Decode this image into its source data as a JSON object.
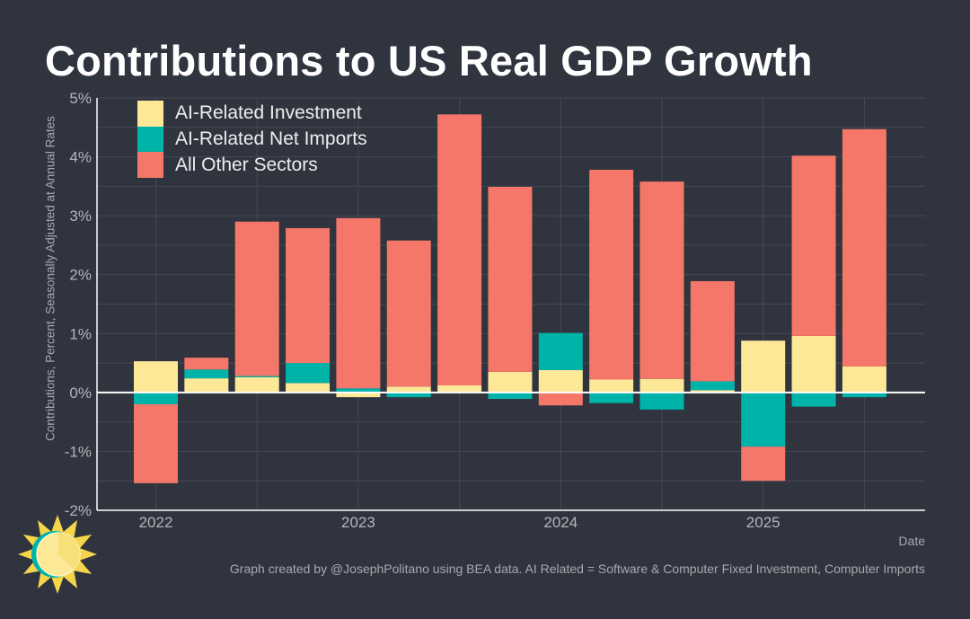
{
  "header": {
    "title": "Contributions to US Real GDP Growth"
  },
  "footer": {
    "x_axis_title": "Date",
    "caption": "Graph created by @JosephPolitano using BEA data. AI Related = Software & Computer Fixed Investment, Computer Imports"
  },
  "logo": {
    "icon": "sun-icon"
  },
  "colors": {
    "background": "#30343f",
    "grid": "#454954",
    "axis": "#ffffff",
    "ai_investment": "#fde898",
    "ai_imports": "#00b3a9",
    "other": "#f4776a"
  },
  "chart_data": {
    "type": "bar",
    "stacked": true,
    "title": "Contributions to US Real GDP Growth",
    "xlabel": "Date",
    "ylabel": "Contributions, Percent, Seasonally Adjusted at Annual Rates",
    "ylim": [
      -2,
      5
    ],
    "yticks": [
      -2,
      -1,
      0,
      1,
      2,
      3,
      4,
      5
    ],
    "ytick_labels": [
      "-2%",
      "-1%",
      "0%",
      "1%",
      "2%",
      "3%",
      "4%",
      "5%"
    ],
    "xtick_labels": [
      "2022",
      "2023",
      "2024",
      "2025"
    ],
    "grid": true,
    "legend_position": "top-left",
    "categories": [
      "2022 Q1",
      "2022 Q2",
      "2022 Q3",
      "2022 Q4",
      "2023 Q1",
      "2023 Q2",
      "2023 Q3",
      "2023 Q4",
      "2024 Q1",
      "2024 Q2",
      "2024 Q3",
      "2024 Q4",
      "2025 Q1",
      "2025 Q2",
      "2025 Q3"
    ],
    "series": [
      {
        "name": "AI-Related Investment",
        "color": "#fde898",
        "values": [
          0.53,
          0.24,
          0.26,
          0.16,
          -0.08,
          0.1,
          0.12,
          0.35,
          0.38,
          0.22,
          0.23,
          0.04,
          0.88,
          0.96,
          0.44
        ]
      },
      {
        "name": "AI-Related Net Imports",
        "color": "#00b3a9",
        "values": [
          -0.2,
          0.15,
          0.02,
          0.34,
          0.07,
          -0.08,
          0.0,
          -0.11,
          0.63,
          -0.18,
          -0.29,
          0.15,
          -0.92,
          -0.24,
          -0.08
        ]
      },
      {
        "name": "All Other Sectors",
        "color": "#f4776a",
        "values": [
          -1.34,
          0.2,
          2.62,
          2.29,
          2.89,
          2.48,
          4.6,
          3.14,
          -0.22,
          3.56,
          3.35,
          1.7,
          -0.58,
          3.06,
          4.03
        ]
      }
    ]
  }
}
